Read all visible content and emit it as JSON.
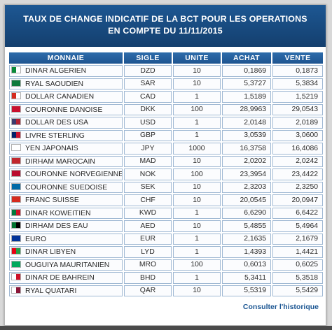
{
  "header": {
    "title_line1": "TAUX DE CHANGE INDICATIF DE LA BCT POUR LES OPERATIONS",
    "title_line2": "EN COMPTE DU 11/11/2015"
  },
  "table": {
    "columns": [
      "MONNAIE",
      "SIGLE",
      "UNITE",
      "ACHAT",
      "VENTE"
    ],
    "rows": [
      {
        "name": "DINAR ALGERIEN",
        "code": "DZD",
        "unit": "10",
        "buy": "0,1869",
        "sell": "0,1873",
        "flag": "algeria-flag-icon",
        "colors": [
          "#0a8a3a",
          "#ffffff"
        ]
      },
      {
        "name": "RYAL SAOUDIEN",
        "code": "SAR",
        "unit": "10",
        "buy": "5,3727",
        "sell": "5,3834",
        "flag": "saudi-arabia-flag-icon",
        "colors": [
          "#0f7a3b",
          "#0f7a3b"
        ]
      },
      {
        "name": "DOLLAR CANADIEN",
        "code": "CAD",
        "unit": "1",
        "buy": "1,5189",
        "sell": "1,5219",
        "flag": "canada-flag-icon",
        "colors": [
          "#d52b1e",
          "#ffffff"
        ]
      },
      {
        "name": "COURONNE DANOISE",
        "code": "DKK",
        "unit": "100",
        "buy": "28,9963",
        "sell": "29,0543",
        "flag": "denmark-flag-icon",
        "colors": [
          "#c8102e",
          "#c8102e"
        ]
      },
      {
        "name": "DOLLAR DES USA",
        "code": "USD",
        "unit": "1",
        "buy": "2,0148",
        "sell": "2,0189",
        "flag": "usa-flag-icon",
        "colors": [
          "#3c3b6e",
          "#b22234"
        ]
      },
      {
        "name": "LIVRE STERLING",
        "code": "GBP",
        "unit": "1",
        "buy": "3,0539",
        "sell": "3,0600",
        "flag": "uk-flag-icon",
        "colors": [
          "#012169",
          "#c8102e"
        ]
      },
      {
        "name": "YEN JAPONAIS",
        "code": "JPY",
        "unit": "1000",
        "buy": "16,3758",
        "sell": "16,4086",
        "flag": "japan-flag-icon",
        "colors": [
          "#ffffff",
          "#ffffff"
        ]
      },
      {
        "name": "DIRHAM MAROCAIN",
        "code": "MAD",
        "unit": "10",
        "buy": "2,0202",
        "sell": "2,0242",
        "flag": "morocco-flag-icon",
        "colors": [
          "#c1272d",
          "#c1272d"
        ]
      },
      {
        "name": "COURONNE NORVEGIENNE",
        "code": "NOK",
        "unit": "100",
        "buy": "23,3954",
        "sell": "23,4422",
        "flag": "norway-flag-icon",
        "colors": [
          "#ba0c2f",
          "#ba0c2f"
        ]
      },
      {
        "name": "COURONNE SUEDOISE",
        "code": "SEK",
        "unit": "10",
        "buy": "2,3203",
        "sell": "2,3250",
        "flag": "sweden-flag-icon",
        "colors": [
          "#006aa7",
          "#006aa7"
        ]
      },
      {
        "name": "FRANC SUISSE",
        "code": "CHF",
        "unit": "10",
        "buy": "20,0545",
        "sell": "20,0947",
        "flag": "switzerland-flag-icon",
        "colors": [
          "#d52b1e",
          "#d52b1e"
        ]
      },
      {
        "name": "DINAR KOWEITIEN",
        "code": "KWD",
        "unit": "1",
        "buy": "6,6290",
        "sell": "6,6422",
        "flag": "kuwait-flag-icon",
        "colors": [
          "#007a3d",
          "#ce1126"
        ]
      },
      {
        "name": "DIRHAM DES EAU",
        "code": "AED",
        "unit": "10",
        "buy": "5,4855",
        "sell": "5,4964",
        "flag": "uae-flag-icon",
        "colors": [
          "#00732f",
          "#000000"
        ]
      },
      {
        "name": "EURO",
        "code": "EUR",
        "unit": "1",
        "buy": "2,1635",
        "sell": "2,1679",
        "flag": "eu-flag-icon",
        "colors": [
          "#003399",
          "#003399"
        ]
      },
      {
        "name": "DINAR LIBYEN",
        "code": "LYD",
        "unit": "1",
        "buy": "1,4393",
        "sell": "1,4421",
        "flag": "libya-flag-icon",
        "colors": [
          "#e70013",
          "#239e46"
        ]
      },
      {
        "name": "OUGUIYA MAURITANIEN",
        "code": "MRO",
        "unit": "100",
        "buy": "0,6013",
        "sell": "0,6025",
        "flag": "mauritania-flag-icon",
        "colors": [
          "#00a95c",
          "#00a95c"
        ]
      },
      {
        "name": "DINAR DE BAHREIN",
        "code": "BHD",
        "unit": "1",
        "buy": "5,3411",
        "sell": "5,3518",
        "flag": "bahrain-flag-icon",
        "colors": [
          "#ffffff",
          "#ce1126"
        ]
      },
      {
        "name": "RYAL QUATARI",
        "code": "QAR",
        "unit": "10",
        "buy": "5,5319",
        "sell": "5,5429",
        "flag": "qatar-flag-icon",
        "colors": [
          "#ffffff",
          "#8a1538"
        ]
      }
    ]
  },
  "history_link": "Consulter l'historique"
}
